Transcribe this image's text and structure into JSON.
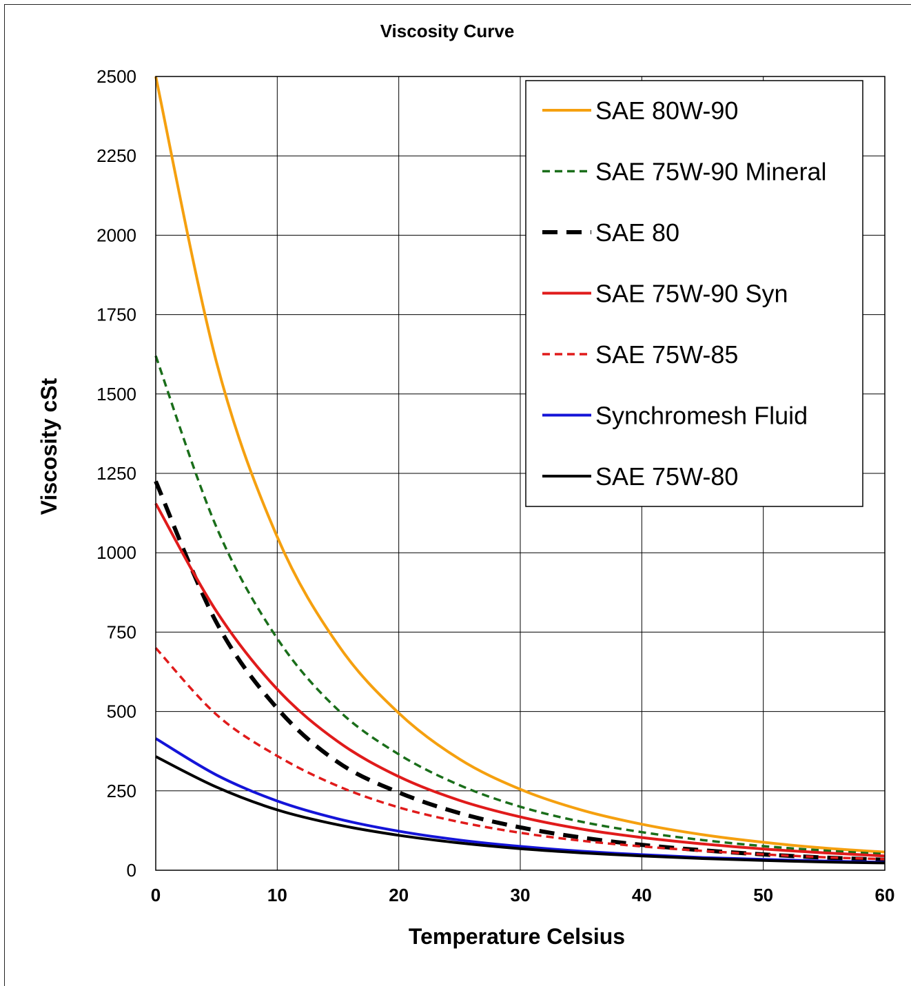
{
  "chart_data": {
    "type": "line",
    "title": "Viscosity Curve",
    "xlabel": "Temperature Celsius",
    "ylabel": "Viscosity  cSt",
    "xlim": [
      0,
      60
    ],
    "ylim": [
      0,
      2500
    ],
    "xticks": [
      "0",
      "10",
      "20",
      "30",
      "40",
      "50",
      "60"
    ],
    "yticks": [
      "0",
      "250",
      "500",
      "750",
      "1000",
      "1250",
      "1500",
      "1750",
      "2000",
      "2250",
      "2500"
    ],
    "grid": true,
    "legend_position": "top-right",
    "x": [
      0,
      5,
      10,
      15,
      20,
      25,
      30,
      35,
      40,
      45,
      50,
      55,
      60
    ],
    "series": [
      {
        "name": "SAE 80W-90",
        "color": "#f5a00f",
        "style": "solid",
        "values": [
          2500,
          1600,
          1050,
          710,
          495,
          350,
          255,
          190,
          145,
          112,
          88,
          70,
          57
        ]
      },
      {
        "name": "SAE 75W-90 Mineral",
        "color": "#1a6e1a",
        "style": "dotted",
        "values": [
          1620,
          1080,
          730,
          505,
          365,
          268,
          200,
          153,
          120,
          95,
          76,
          62,
          51
        ]
      },
      {
        "name": "SAE 80",
        "color": "#000000",
        "style": "dashed",
        "values": [
          1225,
          780,
          510,
          340,
          245,
          180,
          135,
          103,
          80,
          63,
          50,
          40,
          33
        ]
      },
      {
        "name": "SAE 75W-90 Syn",
        "color": "#e01b1b",
        "style": "solid",
        "values": [
          1155,
          815,
          570,
          405,
          295,
          220,
          168,
          130,
          103,
          83,
          67,
          55,
          45
        ]
      },
      {
        "name": "SAE 75W-85",
        "color": "#e01b1b",
        "style": "dotted",
        "values": [
          700,
          490,
          360,
          265,
          198,
          152,
          118,
          93,
          75,
          61,
          50,
          41,
          35
        ]
      },
      {
        "name": "Synchromesh Fluid",
        "color": "#1414d8",
        "style": "solid",
        "values": [
          415,
          300,
          218,
          162,
          123,
          95,
          75,
          60,
          49,
          40,
          34,
          29,
          25
        ]
      },
      {
        "name": "SAE 75W-80",
        "color": "#000000",
        "style": "solid",
        "values": [
          358,
          262,
          190,
          143,
          110,
          86,
          68,
          55,
          45,
          37,
          31,
          26,
          23
        ]
      }
    ]
  }
}
